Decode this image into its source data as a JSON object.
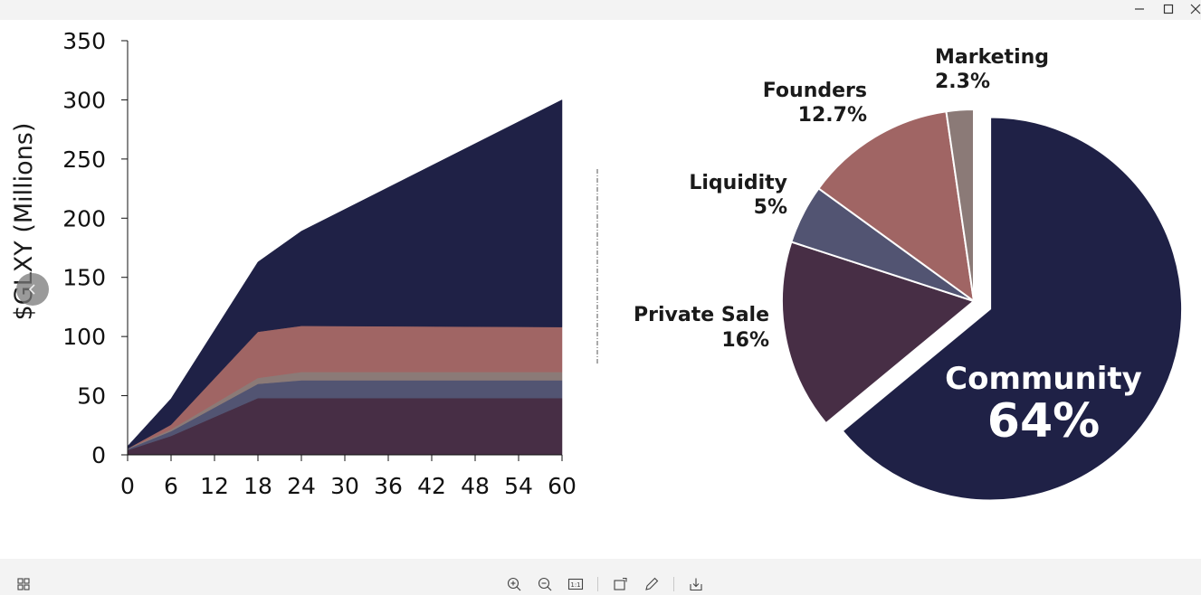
{
  "window": {
    "minimize_icon": "minimize-icon",
    "maximize_icon": "maximize-icon",
    "close_icon": "close-icon"
  },
  "toolbar": {
    "icons": [
      "grid-view-icon",
      "zoom-in-icon",
      "zoom-out-icon",
      "actual-size-icon",
      "rotate-icon",
      "edit-icon",
      "save-icon"
    ],
    "actual_size_label": "1:1"
  },
  "colors": {
    "community": "#1f2146",
    "private_sale": "#472e45",
    "liquidity": "#525472",
    "founders": "#a06564",
    "marketing": "#8b7a77",
    "background": "#ffffff"
  },
  "chart_data": [
    {
      "type": "area",
      "stacked": true,
      "ylabel": "$GLXY (Millions)",
      "xlabel": "",
      "x": [
        0,
        6,
        18,
        24,
        60
      ],
      "xticks": [
        0,
        6,
        12,
        18,
        24,
        30,
        36,
        42,
        48,
        54,
        60
      ],
      "yticks": [
        0,
        50,
        100,
        150,
        200,
        250,
        300,
        350
      ],
      "xlim": [
        0,
        60
      ],
      "ylim": [
        0,
        350
      ],
      "grid": false,
      "series": [
        {
          "name": "Private Sale",
          "values": [
            4,
            16,
            48,
            48,
            48
          ],
          "color": "#472e45"
        },
        {
          "name": "Liquidity",
          "values": [
            1,
            4,
            12,
            15,
            15
          ],
          "color": "#525472"
        },
        {
          "name": "Marketing",
          "values": [
            0.3,
            1.5,
            5,
            7,
            7
          ],
          "color": "#8b7a77"
        },
        {
          "name": "Founders",
          "values": [
            0,
            4,
            39,
            39,
            38
          ],
          "color": "#a06564"
        },
        {
          "name": "Community",
          "values": [
            2,
            22,
            59,
            80,
            192
          ],
          "color": "#1f2146"
        }
      ]
    },
    {
      "type": "pie",
      "slices": [
        {
          "name": "Community",
          "value": 64,
          "label": "64%",
          "color": "#1f2146",
          "exploded": true
        },
        {
          "name": "Private Sale",
          "value": 16,
          "label": "16%",
          "color": "#472e45",
          "exploded": false
        },
        {
          "name": "Liquidity",
          "value": 5,
          "label": "5%",
          "color": "#525472",
          "exploded": false
        },
        {
          "name": "Founders",
          "value": 12.7,
          "label": "12.7%",
          "color": "#a06564",
          "exploded": false
        },
        {
          "name": "Marketing",
          "value": 2.3,
          "label": "2.3%",
          "color": "#8b7a77",
          "exploded": false
        }
      ]
    }
  ]
}
